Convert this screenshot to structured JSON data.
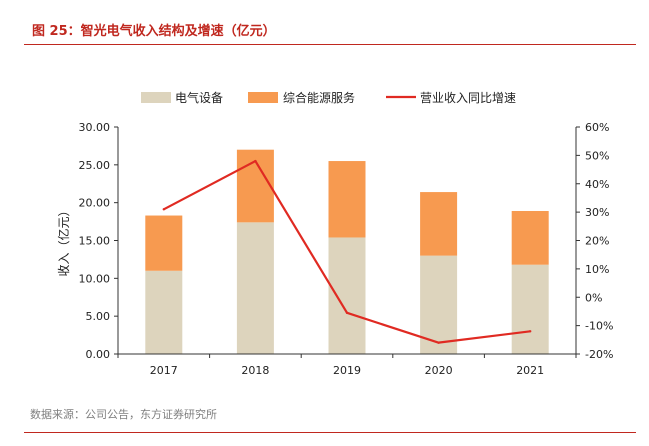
{
  "title": "图 25：智光电气收入结构及增速（亿元）",
  "source": "数据来源：公司公告，东方证券研究所",
  "colors": {
    "title": "#c0281f",
    "electrical": "#ddd4bd",
    "energy_services": "#f79a50",
    "growth_line": "#e02a22",
    "axis": "#333333"
  },
  "chart_data": {
    "type": "bar",
    "stacked": true,
    "categories": [
      "2017",
      "2018",
      "2019",
      "2020",
      "2021"
    ],
    "series": [
      {
        "name": "电气设备",
        "kind": "bar",
        "axis": "left",
        "values": [
          11.0,
          17.4,
          15.4,
          13.0,
          11.8
        ]
      },
      {
        "name": "综合能源服务",
        "kind": "bar",
        "axis": "left",
        "values": [
          7.3,
          9.6,
          10.1,
          8.4,
          7.1
        ]
      },
      {
        "name": "营业收入同比增速",
        "kind": "line",
        "axis": "right",
        "values": [
          31,
          48,
          -5.5,
          -16,
          -12
        ]
      }
    ],
    "ylabel": "收入（亿元）",
    "ylim": [
      0,
      30
    ],
    "yticks": [
      "0.00",
      "5.00",
      "10.00",
      "15.00",
      "20.00",
      "25.00",
      "30.00"
    ],
    "y2lim": [
      -20,
      60
    ],
    "y2ticks": [
      "-20%",
      "-10%",
      "0%",
      "10%",
      "20%",
      "30%",
      "40%",
      "50%",
      "60%"
    ],
    "legend_position": "top",
    "grid": false
  }
}
